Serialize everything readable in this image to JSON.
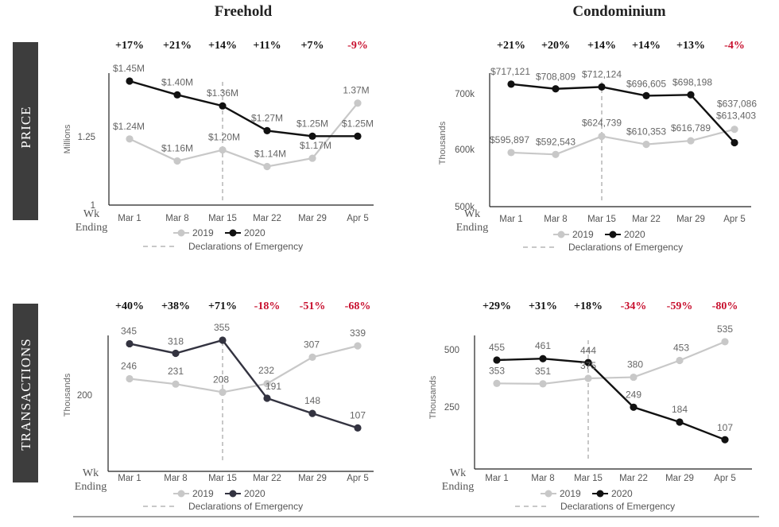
{
  "chart_data": [
    {
      "type": "line",
      "title": "Freehold",
      "row_label": "PRICE",
      "ylabel": "Millions",
      "xlabel": "Wk Ending",
      "categories": [
        "Mar 1",
        "Mar 8",
        "Mar 15",
        "Mar 22",
        "Mar 29",
        "Apr 5"
      ],
      "yticks": [
        {
          "value": 1.25,
          "label": "1.25"
        },
        {
          "value": 1.0,
          "label": "1"
        }
      ],
      "ylim": [
        1.0,
        1.5
      ],
      "percent_changes": [
        "+17%",
        "+21%",
        "+14%",
        "+11%",
        "+7%",
        "-9%"
      ],
      "series": [
        {
          "name": "2019",
          "color": "#c8c8c8",
          "values": [
            1.24,
            1.16,
            1.2,
            1.14,
            1.17,
            1.37
          ],
          "labels": [
            "$1.24M",
            "$1.16M",
            "$1.20M",
            "$1.14M",
            "$1.17M",
            "1.37M"
          ]
        },
        {
          "name": "2020",
          "color": "#111111",
          "values": [
            1.45,
            1.4,
            1.36,
            1.27,
            1.25,
            1.25
          ],
          "labels": [
            "$1.45M",
            "$1.40M",
            "$1.36M",
            "$1.27M",
            "$1.25M",
            "$1.25M"
          ]
        }
      ],
      "emergency_x": "Mar 15",
      "legend_emergency": "Declarations of Emergency"
    },
    {
      "type": "line",
      "title": "Condominium",
      "row_label": "PRICE",
      "ylabel": "Thousands",
      "xlabel": "Wk Ending",
      "categories": [
        "Mar 1",
        "Mar 8",
        "Mar 15",
        "Mar 22",
        "Mar 29",
        "Apr 5"
      ],
      "yticks": [
        {
          "value": 700,
          "label": "700k"
        },
        {
          "value": 600,
          "label": "600k"
        },
        {
          "value": 500,
          "label": "500k"
        }
      ],
      "ylim": [
        500,
        740
      ],
      "percent_changes": [
        "+21%",
        "+20%",
        "+14%",
        "+14%",
        "+13%",
        "-4%"
      ],
      "series": [
        {
          "name": "2019",
          "color": "#c8c8c8",
          "values": [
            595.897,
            592.543,
            624.739,
            610.353,
            616.789,
            637.086
          ],
          "labels": [
            "$595,897",
            "$592,543",
            "$624,739",
            "$610,353",
            "$616,789",
            "$637,086"
          ]
        },
        {
          "name": "2020",
          "color": "#111111",
          "values": [
            717.121,
            708.809,
            712.124,
            696.605,
            698.198,
            613.403
          ],
          "labels": [
            "$717,121",
            "$708,809",
            "$712,124",
            "$696,605",
            "$698,198",
            "$613,403"
          ]
        }
      ],
      "emergency_x": "Mar 15",
      "legend_emergency": "Declarations of Emergency"
    },
    {
      "type": "line",
      "title": "",
      "row_label": "TRANSACTIONS",
      "ylabel": "Thousands",
      "xlabel": "Wk Ending",
      "categories": [
        "Mar 1",
        "Mar 8",
        "Mar 15",
        "Mar 22",
        "Mar 29",
        "Apr 5"
      ],
      "yticks": [
        {
          "value": 200,
          "label": "200"
        }
      ],
      "ylim": [
        0,
        400
      ],
      "percent_changes": [
        "+40%",
        "+38%",
        "+71%",
        "-18%",
        "-51%",
        "-68%"
      ],
      "series": [
        {
          "name": "2019",
          "color": "#c8c8c8",
          "values": [
            246,
            231,
            208,
            232,
            307,
            339
          ],
          "labels": [
            "246",
            "231",
            "208",
            "232",
            "307",
            "339"
          ]
        },
        {
          "name": "2020",
          "color": "#333340",
          "values": [
            345,
            318,
            355,
            191,
            148,
            107
          ],
          "labels": [
            "345",
            "318",
            "355",
            "191",
            "148",
            "107"
          ]
        }
      ],
      "emergency_x": "Mar 15",
      "legend_emergency": "Declarations of Emergency"
    },
    {
      "type": "line",
      "title": "",
      "row_label": "TRANSACTIONS",
      "ylabel": "Thousands",
      "xlabel": "Wk Ending",
      "categories": [
        "Mar 1",
        "Mar 8",
        "Mar 15",
        "Mar 22",
        "Mar 29",
        "Apr 5"
      ],
      "yticks": [
        {
          "value": 500,
          "label": "500"
        },
        {
          "value": 250,
          "label": "250"
        }
      ],
      "ylim": [
        0,
        560
      ],
      "percent_changes": [
        "+29%",
        "+31%",
        "+18%",
        "-34%",
        "-59%",
        "-80%"
      ],
      "series": [
        {
          "name": "2019",
          "color": "#c8c8c8",
          "values": [
            353,
            351,
            375,
            380,
            453,
            535
          ],
          "labels": [
            "353",
            "351",
            "375",
            "380",
            "453",
            "535"
          ]
        },
        {
          "name": "2020",
          "color": "#111111",
          "values": [
            455,
            461,
            444,
            249,
            184,
            107
          ],
          "labels": [
            "455",
            "461",
            "444",
            "249",
            "184",
            "107"
          ]
        }
      ],
      "emergency_x": "Mar 15",
      "legend_emergency": "Declarations of Emergency"
    }
  ],
  "colors": {
    "positive": "#111111",
    "negative": "#c8102e",
    "sidebar": "#3d3d3d",
    "emergency": "#c8c8c8"
  }
}
